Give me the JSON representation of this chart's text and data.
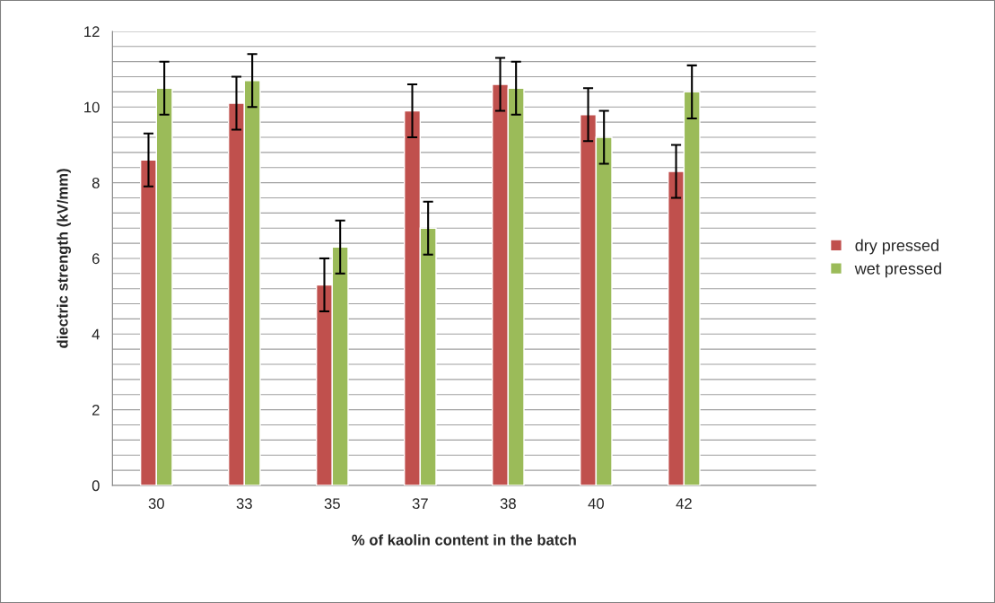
{
  "chart_data": {
    "type": "bar",
    "xlabel": "% of kaolin content in the batch",
    "ylabel": "diectric strength (kV/mm)",
    "categories": [
      "30",
      "33",
      "35",
      "37",
      "38",
      "40",
      "42",
      null
    ],
    "series": [
      {
        "name": "dry pressed",
        "color": "#c0504d",
        "values": [
          8.6,
          10.1,
          5.3,
          9.9,
          10.6,
          9.8,
          8.3,
          null
        ],
        "errors": [
          0.7,
          0.7,
          0.7,
          0.7,
          0.7,
          0.7,
          0.7,
          null
        ]
      },
      {
        "name": "wet pressed",
        "color": "#9bbb59",
        "values": [
          10.5,
          10.7,
          6.3,
          6.8,
          10.5,
          9.2,
          10.4,
          null
        ],
        "errors": [
          0.7,
          0.7,
          0.7,
          0.7,
          0.7,
          0.7,
          0.7,
          null
        ]
      }
    ],
    "ylim": [
      0,
      12
    ],
    "yticks": [
      0,
      {
        "value": 0.4,
        "label": null
      },
      {
        "value": 0.8,
        "label": null
      },
      {
        "value": 1.2,
        "label": null
      },
      {
        "value": 1.6,
        "label": null
      },
      2,
      {
        "value": 2.4,
        "label": null
      },
      {
        "value": 2.8,
        "label": null
      },
      {
        "value": 3.2,
        "label": null
      },
      {
        "value": 3.6,
        "label": null
      },
      4,
      {
        "value": 4.4,
        "label": null
      },
      {
        "value": 4.8,
        "label": null
      },
      {
        "value": 5.2,
        "label": null
      },
      {
        "value": 5.6,
        "label": null
      },
      6,
      {
        "value": 6.4,
        "label": null
      },
      {
        "value": 6.8,
        "label": null
      },
      {
        "value": 7.2,
        "label": null
      },
      {
        "value": 7.6,
        "label": null
      },
      8,
      {
        "value": 8.4,
        "label": null
      },
      {
        "value": 8.8,
        "label": null
      },
      {
        "value": 9.2,
        "label": null
      },
      {
        "value": 9.6,
        "label": null
      },
      10,
      {
        "value": 10.4,
        "label": null
      },
      {
        "value": 10.8,
        "label": null
      },
      {
        "value": 11.2,
        "label": null
      },
      {
        "value": 11.6,
        "label": null
      },
      12
    ],
    "grid": "y",
    "legend": "right"
  }
}
